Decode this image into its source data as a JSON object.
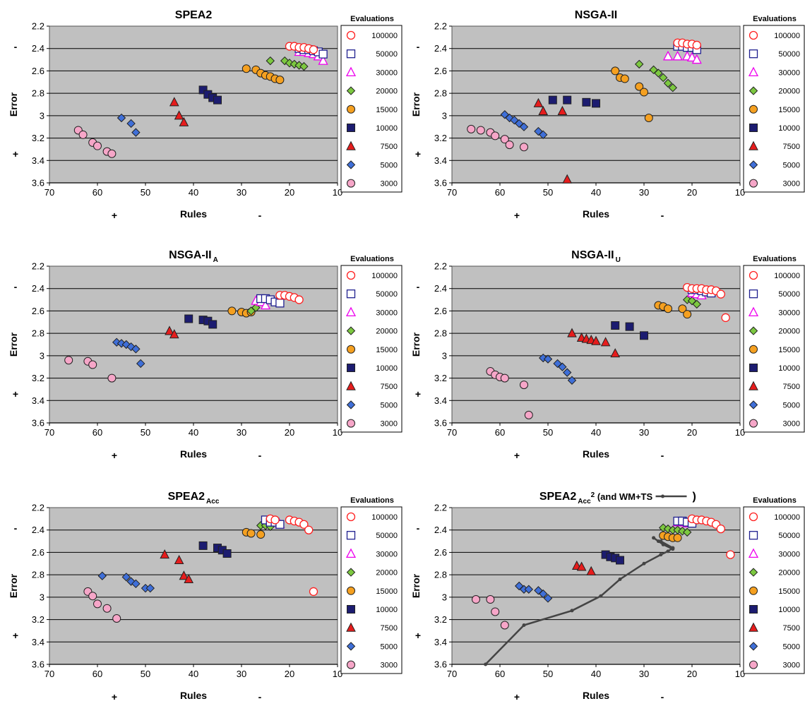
{
  "figure": {
    "legend_title": "Evaluations",
    "y_axis_label": "Error",
    "x_axis_label": "Rules",
    "y_sign_top": "-",
    "y_sign_bottom": "+",
    "x_sign_left": "+",
    "x_sign_right": "-"
  },
  "series_styles": [
    {
      "name": "100000",
      "marker": "circle-open",
      "color": "#ff2020"
    },
    {
      "name": "50000",
      "marker": "square-open",
      "color": "#1f1f8f"
    },
    {
      "name": "30000",
      "marker": "triangle-open",
      "color": "#ee00ee"
    },
    {
      "name": "20000",
      "marker": "diamond",
      "color": "#7cc840"
    },
    {
      "name": "15000",
      "marker": "circle",
      "color": "#f5a020"
    },
    {
      "name": "10000",
      "marker": "square",
      "color": "#1c1c70"
    },
    {
      "name": "7500",
      "marker": "triangle",
      "color": "#e61c1c"
    },
    {
      "name": "5000",
      "marker": "diamond",
      "color": "#3f6fd8"
    },
    {
      "name": "3000",
      "marker": "circle",
      "color": "#f6a6c8"
    }
  ],
  "chart_data": [
    {
      "type": "scatter",
      "title": "SPEA2",
      "xlabel": "Rules",
      "ylabel": "Error",
      "xlim": [
        70,
        10
      ],
      "ylim": [
        3.6,
        2.2
      ],
      "x_ticks": [
        70,
        60,
        50,
        40,
        30,
        20,
        10
      ],
      "y_ticks": [
        2.2,
        2.4,
        2.6,
        2.8,
        3,
        3.2,
        3.4,
        3.6
      ],
      "grid": "horizontal",
      "legend_title": "Evaluations",
      "legend_position": "right",
      "series": [
        {
          "name": "100000",
          "x": [
            20,
            19,
            18,
            17,
            16,
            15
          ],
          "y": [
            2.38,
            2.38,
            2.39,
            2.39,
            2.4,
            2.41
          ]
        },
        {
          "name": "50000",
          "x": [
            18,
            17,
            16,
            15,
            14,
            13
          ],
          "y": [
            2.4,
            2.41,
            2.41,
            2.42,
            2.43,
            2.45
          ]
        },
        {
          "name": "30000",
          "x": [
            18,
            17,
            16,
            15,
            14,
            13
          ],
          "y": [
            2.43,
            2.43,
            2.44,
            2.45,
            2.47,
            2.51
          ]
        },
        {
          "name": "20000",
          "x": [
            24,
            21,
            20,
            19,
            18,
            17
          ],
          "y": [
            2.51,
            2.51,
            2.53,
            2.54,
            2.55,
            2.56
          ]
        },
        {
          "name": "15000",
          "x": [
            29,
            27,
            26,
            25,
            24,
            23,
            22
          ],
          "y": [
            2.58,
            2.59,
            2.62,
            2.64,
            2.65,
            2.67,
            2.68
          ]
        },
        {
          "name": "10000",
          "x": [
            38,
            37,
            36,
            35
          ],
          "y": [
            2.77,
            2.81,
            2.84,
            2.86
          ]
        },
        {
          "name": "7500",
          "x": [
            44,
            43,
            42
          ],
          "y": [
            2.88,
            3.0,
            3.06
          ]
        },
        {
          "name": "5000",
          "x": [
            55,
            53,
            52
          ],
          "y": [
            3.02,
            3.07,
            3.15
          ]
        },
        {
          "name": "3000",
          "x": [
            64,
            63,
            61,
            60,
            58,
            57
          ],
          "y": [
            3.13,
            3.17,
            3.24,
            3.27,
            3.32,
            3.34
          ]
        }
      ]
    },
    {
      "type": "scatter",
      "title": "NSGA-II",
      "xlabel": "Rules",
      "ylabel": "Error",
      "xlim": [
        70,
        10
      ],
      "ylim": [
        3.6,
        2.2
      ],
      "x_ticks": [
        70,
        60,
        50,
        40,
        30,
        20,
        10
      ],
      "y_ticks": [
        2.2,
        2.4,
        2.6,
        2.8,
        3,
        3.2,
        3.4,
        3.6
      ],
      "grid": "horizontal",
      "legend_title": "Evaluations",
      "legend_position": "right",
      "series": [
        {
          "name": "100000",
          "x": [
            23,
            22,
            21,
            20,
            19
          ],
          "y": [
            2.35,
            2.35,
            2.36,
            2.36,
            2.37
          ]
        },
        {
          "name": "50000",
          "x": [
            23,
            22,
            21,
            20,
            19
          ],
          "y": [
            2.38,
            2.38,
            2.39,
            2.39,
            2.41
          ]
        },
        {
          "name": "30000",
          "x": [
            25,
            23,
            21,
            20,
            19
          ],
          "y": [
            2.47,
            2.47,
            2.47,
            2.48,
            2.5
          ]
        },
        {
          "name": "20000",
          "x": [
            31,
            28,
            27,
            26,
            25,
            24
          ],
          "y": [
            2.54,
            2.59,
            2.62,
            2.66,
            2.71,
            2.75
          ]
        },
        {
          "name": "15000",
          "x": [
            36,
            35,
            34,
            31,
            30,
            29
          ],
          "y": [
            2.6,
            2.66,
            2.67,
            2.74,
            2.79,
            3.02
          ]
        },
        {
          "name": "10000",
          "x": [
            49,
            46,
            42,
            40
          ],
          "y": [
            2.86,
            2.86,
            2.88,
            2.89
          ]
        },
        {
          "name": "7500",
          "x": [
            52,
            51,
            47,
            46
          ],
          "y": [
            2.89,
            2.96,
            2.96,
            3.57
          ]
        },
        {
          "name": "5000",
          "x": [
            59,
            58,
            57,
            56,
            55,
            52,
            51
          ],
          "y": [
            2.99,
            3.02,
            3.04,
            3.07,
            3.1,
            3.14,
            3.17
          ]
        },
        {
          "name": "3000",
          "x": [
            66,
            64,
            62,
            61,
            59,
            58,
            55
          ],
          "y": [
            3.12,
            3.13,
            3.15,
            3.18,
            3.21,
            3.26,
            3.28
          ]
        }
      ]
    },
    {
      "type": "scatter",
      "title": "NSGA-II",
      "title_subscript": "A",
      "xlabel": "Rules",
      "ylabel": "Error",
      "xlim": [
        70,
        10
      ],
      "ylim": [
        3.6,
        2.2
      ],
      "x_ticks": [
        70,
        60,
        50,
        40,
        30,
        20,
        10
      ],
      "y_ticks": [
        2.2,
        2.4,
        2.6,
        2.8,
        3,
        3.2,
        3.4,
        3.6
      ],
      "grid": "horizontal",
      "legend_title": "Evaluations",
      "legend_position": "right",
      "series": [
        {
          "name": "100000",
          "x": [
            22,
            21,
            20,
            19,
            18
          ],
          "y": [
            2.46,
            2.46,
            2.47,
            2.48,
            2.5
          ]
        },
        {
          "name": "50000",
          "x": [
            26,
            25,
            24,
            23,
            22
          ],
          "y": [
            2.49,
            2.49,
            2.5,
            2.52,
            2.53
          ]
        },
        {
          "name": "30000",
          "x": [
            27,
            26,
            25
          ],
          "y": [
            2.51,
            2.52,
            2.55
          ]
        },
        {
          "name": "20000",
          "x": [
            28,
            27
          ],
          "y": [
            2.6,
            2.57
          ]
        },
        {
          "name": "15000",
          "x": [
            32,
            30,
            29,
            28
          ],
          "y": [
            2.6,
            2.61,
            2.62,
            2.61
          ]
        },
        {
          "name": "10000",
          "x": [
            41,
            38,
            37,
            36
          ],
          "y": [
            2.67,
            2.68,
            2.69,
            2.72
          ]
        },
        {
          "name": "7500",
          "x": [
            45,
            44
          ],
          "y": [
            2.78,
            2.81
          ]
        },
        {
          "name": "5000",
          "x": [
            56,
            55,
            54,
            53,
            52,
            51
          ],
          "y": [
            2.88,
            2.89,
            2.9,
            2.92,
            2.94,
            3.07
          ]
        },
        {
          "name": "3000",
          "x": [
            66,
            62,
            61,
            57
          ],
          "y": [
            3.04,
            3.05,
            3.08,
            3.2
          ]
        }
      ]
    },
    {
      "type": "scatter",
      "title": "NSGA-II",
      "title_subscript": "U",
      "xlabel": "Rules",
      "ylabel": "Error",
      "xlim": [
        70,
        10
      ],
      "ylim": [
        3.6,
        2.2
      ],
      "x_ticks": [
        70,
        60,
        50,
        40,
        30,
        20,
        10
      ],
      "y_ticks": [
        2.2,
        2.4,
        2.6,
        2.8,
        3,
        3.2,
        3.4,
        3.6
      ],
      "grid": "horizontal",
      "legend_title": "Evaluations",
      "legend_position": "right",
      "series": [
        {
          "name": "100000",
          "x": [
            21,
            20,
            19,
            18,
            17,
            16,
            15,
            14,
            13
          ],
          "y": [
            2.39,
            2.4,
            2.4,
            2.4,
            2.41,
            2.41,
            2.42,
            2.45,
            2.66
          ]
        },
        {
          "name": "50000",
          "x": [
            20,
            19,
            18,
            17,
            16
          ],
          "y": [
            2.41,
            2.41,
            2.42,
            2.43,
            2.44
          ]
        },
        {
          "name": "30000",
          "x": [
            20,
            19,
            18
          ],
          "y": [
            2.44,
            2.45,
            2.46
          ]
        },
        {
          "name": "20000",
          "x": [
            21,
            20,
            19
          ],
          "y": [
            2.5,
            2.51,
            2.54
          ]
        },
        {
          "name": "15000",
          "x": [
            27,
            26,
            25,
            22,
            21
          ],
          "y": [
            2.55,
            2.56,
            2.58,
            2.58,
            2.63
          ]
        },
        {
          "name": "10000",
          "x": [
            36,
            33,
            30
          ],
          "y": [
            2.73,
            2.74,
            2.82
          ]
        },
        {
          "name": "7500",
          "x": [
            45,
            43,
            42,
            41,
            40,
            38,
            36
          ],
          "y": [
            2.8,
            2.84,
            2.85,
            2.86,
            2.87,
            2.88,
            2.98
          ]
        },
        {
          "name": "5000",
          "x": [
            51,
            50,
            48,
            47,
            46,
            45
          ],
          "y": [
            3.02,
            3.03,
            3.07,
            3.1,
            3.15,
            3.22
          ]
        },
        {
          "name": "3000",
          "x": [
            62,
            61,
            60,
            59,
            55,
            54
          ],
          "y": [
            3.14,
            3.17,
            3.19,
            3.2,
            3.26,
            3.53
          ]
        }
      ]
    },
    {
      "type": "scatter",
      "title": "SPEA2",
      "title_subscript": "Acc",
      "xlabel": "Rules",
      "ylabel": "Error",
      "xlim": [
        70,
        10
      ],
      "ylim": [
        3.6,
        2.2
      ],
      "x_ticks": [
        70,
        60,
        50,
        40,
        30,
        20,
        10
      ],
      "y_ticks": [
        2.2,
        2.4,
        2.6,
        2.8,
        3,
        3.2,
        3.4,
        3.6
      ],
      "grid": "horizontal",
      "legend_title": "Evaluations",
      "legend_position": "right",
      "series": [
        {
          "name": "100000",
          "x": [
            24,
            23,
            20,
            19,
            18,
            17,
            16,
            15
          ],
          "y": [
            2.3,
            2.31,
            2.31,
            2.32,
            2.33,
            2.35,
            2.4,
            2.95
          ]
        },
        {
          "name": "50000",
          "x": [
            25,
            24,
            23,
            22
          ],
          "y": [
            2.31,
            2.33,
            2.33,
            2.35
          ]
        },
        {
          "name": "30000",
          "x": [
            24,
            23,
            22
          ],
          "y": [
            2.32,
            2.33,
            2.35
          ]
        },
        {
          "name": "20000",
          "x": [
            26,
            25,
            24
          ],
          "y": [
            2.36,
            2.36,
            2.37
          ]
        },
        {
          "name": "15000",
          "x": [
            29,
            28,
            26
          ],
          "y": [
            2.42,
            2.43,
            2.44
          ]
        },
        {
          "name": "10000",
          "x": [
            38,
            35,
            34,
            33
          ],
          "y": [
            2.54,
            2.56,
            2.58,
            2.61
          ]
        },
        {
          "name": "7500",
          "x": [
            46,
            43,
            42,
            41
          ],
          "y": [
            2.62,
            2.67,
            2.81,
            2.84
          ]
        },
        {
          "name": "5000",
          "x": [
            59,
            54,
            53,
            52,
            50,
            49
          ],
          "y": [
            2.81,
            2.82,
            2.86,
            2.88,
            2.92,
            2.92
          ]
        },
        {
          "name": "3000",
          "x": [
            62,
            61,
            60,
            58,
            56
          ],
          "y": [
            2.95,
            2.99,
            3.06,
            3.1,
            3.19
          ]
        }
      ]
    },
    {
      "type": "scatter",
      "title": "SPEA2",
      "title_subscript": "Acc",
      "title_superscript": "2",
      "title_suffix": " (and WM+TS",
      "title_close": ")",
      "xlabel": "Rules",
      "ylabel": "Error",
      "xlim": [
        70,
        10
      ],
      "ylim": [
        3.6,
        2.2
      ],
      "x_ticks": [
        70,
        60,
        50,
        40,
        30,
        20,
        10
      ],
      "y_ticks": [
        2.2,
        2.4,
        2.6,
        2.8,
        3,
        3.2,
        3.4,
        3.6
      ],
      "grid": "horizontal",
      "legend_title": "Evaluations",
      "legend_position": "right",
      "series": [
        {
          "name": "100000",
          "x": [
            20,
            19,
            18,
            17,
            16,
            15,
            14,
            12
          ],
          "y": [
            2.3,
            2.31,
            2.31,
            2.32,
            2.33,
            2.35,
            2.39,
            2.62
          ]
        },
        {
          "name": "50000",
          "x": [
            23,
            22,
            21,
            20
          ],
          "y": [
            2.32,
            2.32,
            2.33,
            2.34
          ]
        },
        {
          "name": "30000",
          "x": [
            23,
            22,
            21
          ],
          "y": [
            2.33,
            2.33,
            2.34
          ]
        },
        {
          "name": "20000",
          "x": [
            26,
            25,
            24,
            23,
            22,
            21
          ],
          "y": [
            2.38,
            2.39,
            2.4,
            2.4,
            2.41,
            2.42
          ]
        },
        {
          "name": "15000",
          "x": [
            26,
            25,
            24,
            23
          ],
          "y": [
            2.45,
            2.46,
            2.47,
            2.47
          ]
        },
        {
          "name": "10000",
          "x": [
            38,
            37,
            36,
            35
          ],
          "y": [
            2.62,
            2.64,
            2.65,
            2.67
          ]
        },
        {
          "name": "7500",
          "x": [
            44,
            43,
            41
          ],
          "y": [
            2.72,
            2.73,
            2.77
          ]
        },
        {
          "name": "5000",
          "x": [
            56,
            55,
            54,
            52,
            51,
            50
          ],
          "y": [
            2.9,
            2.93,
            2.93,
            2.94,
            2.97,
            3.01
          ]
        },
        {
          "name": "3000",
          "x": [
            65,
            62,
            61,
            59
          ],
          "y": [
            3.02,
            3.02,
            3.13,
            3.25
          ]
        },
        {
          "name": "WM+TS",
          "type": "line",
          "color": "#444444",
          "x": [
            28,
            27,
            26,
            24,
            26.5,
            24,
            24,
            25,
            26.5,
            30,
            35,
            39,
            45,
            55,
            63
          ],
          "y": [
            2.47,
            2.5,
            2.53,
            2.57,
            2.5,
            2.56,
            2.56,
            2.59,
            2.62,
            2.7,
            2.84,
            2.99,
            3.12,
            3.25,
            3.6
          ]
        }
      ]
    }
  ]
}
